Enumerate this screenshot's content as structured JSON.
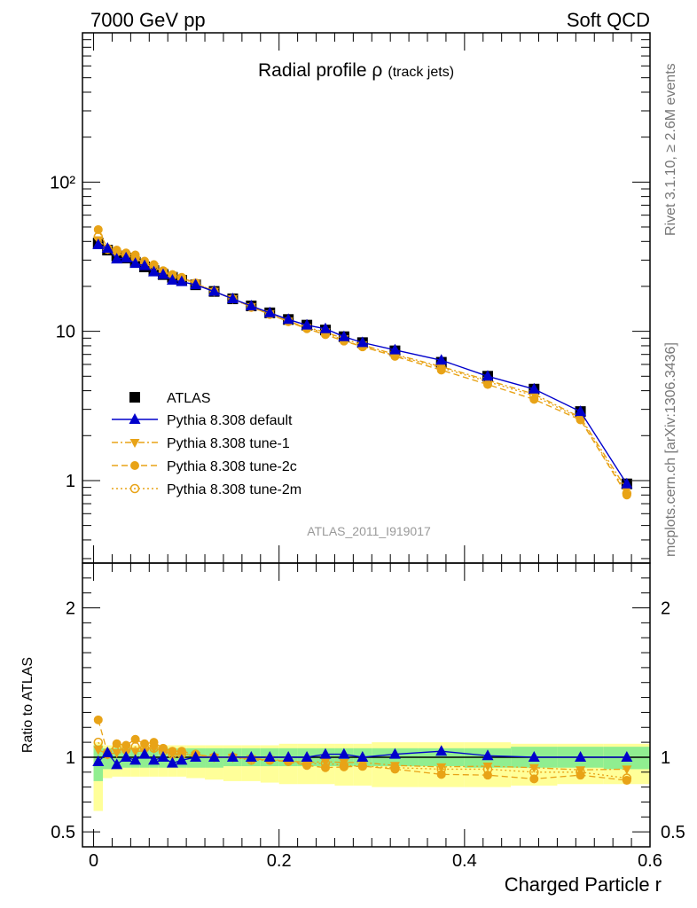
{
  "header": {
    "left": "7000 GeV pp",
    "right": "Soft QCD"
  },
  "plot_title_main": "Radial profile ρ",
  "plot_title_sub": "(track jets)",
  "side_text_top": "Rivet 3.1.10, ≥ 2.6M events",
  "side_text_bottom": "mcplots.cern.ch [arXiv:1306.3436]",
  "watermark": "ATLAS_2011_I919017",
  "xlabel": "Charged Particle r",
  "ratio_ylabel": "Ratio to ATLAS",
  "colors": {
    "atlas": "#000000",
    "default": "#0000cc",
    "tune": "#e8a317",
    "band_inner": "#90ee90",
    "band_outer": "#ffff99"
  },
  "chart_data": [
    {
      "type": "line",
      "panel": "main",
      "yscale": "log",
      "xlim": [
        -0.012,
        0.6
      ],
      "ylim": [
        0.28,
        1000
      ],
      "x_ticks": [
        "0",
        "0.2",
        "0.4",
        "0.6"
      ],
      "y_tick_labels": [
        "1",
        "10",
        "10²"
      ],
      "x": [
        0.005,
        0.015,
        0.025,
        0.035,
        0.045,
        0.055,
        0.065,
        0.075,
        0.085,
        0.095,
        0.11,
        0.13,
        0.15,
        0.17,
        0.19,
        0.21,
        0.23,
        0.25,
        0.27,
        0.29,
        0.325,
        0.375,
        0.425,
        0.475,
        0.525,
        0.575
      ],
      "series": [
        {
          "name": "ATLAS",
          "marker": "square",
          "values": [
            39,
            35,
            32,
            31,
            29,
            27,
            25.5,
            24,
            23,
            22,
            20.5,
            18.5,
            16.5,
            14.8,
            13.3,
            12,
            11,
            10.2,
            9.2,
            8.4,
            7.4,
            6.2,
            5,
            4.1,
            2.9,
            0.95
          ]
        },
        {
          "name": "Pythia 8.308 default",
          "marker": "triangle-up",
          "line": "solid",
          "values": [
            38,
            36,
            30.5,
            31,
            28.5,
            27.5,
            25,
            24,
            22,
            21.5,
            20.5,
            18.5,
            16.5,
            14.8,
            13.3,
            12,
            11,
            10.4,
            9.2,
            8.4,
            7.5,
            6.4,
            5,
            4.1,
            2.9,
            0.95
          ]
        },
        {
          "name": "Pythia 8.308 tune-1",
          "marker": "triangle-down",
          "line": "dashdot",
          "values": [
            41,
            35.5,
            33,
            32,
            30,
            28,
            27,
            25,
            23.5,
            22.5,
            21,
            18.5,
            16.5,
            14.6,
            13.1,
            11.7,
            10.6,
            9.9,
            8.9,
            8.1,
            7,
            5.8,
            4.7,
            3.8,
            2.65,
            0.87
          ]
        },
        {
          "name": "Pythia 8.308 tune-2c",
          "marker": "circle",
          "line": "dashed",
          "values": [
            48,
            36,
            35,
            33.5,
            32.5,
            29.5,
            28,
            25.5,
            24,
            23,
            21,
            18.5,
            16.5,
            14.6,
            13,
            11.6,
            10.4,
            9.5,
            8.6,
            7.9,
            6.8,
            5.5,
            4.4,
            3.5,
            2.55,
            0.8
          ]
        },
        {
          "name": "Pythia 8.308 tune-2m",
          "marker": "open-circle",
          "line": "dotted",
          "values": [
            43,
            35.5,
            34,
            32.5,
            31,
            28.5,
            27,
            25,
            23.5,
            22.5,
            21,
            18.5,
            16.5,
            14.5,
            13,
            11.7,
            10.5,
            9.8,
            8.7,
            7.9,
            6.9,
            5.7,
            4.6,
            3.7,
            2.6,
            0.82
          ]
        }
      ],
      "legend": "left-middle"
    },
    {
      "type": "line",
      "panel": "ratio",
      "ylim": [
        0.4,
        2.3
      ],
      "y_ticks": [
        "0.5",
        "1",
        "2"
      ],
      "reference": 1,
      "x": [
        0.005,
        0.015,
        0.025,
        0.035,
        0.045,
        0.055,
        0.065,
        0.075,
        0.085,
        0.095,
        0.11,
        0.13,
        0.15,
        0.17,
        0.19,
        0.21,
        0.23,
        0.25,
        0.27,
        0.29,
        0.325,
        0.375,
        0.425,
        0.475,
        0.525,
        0.575
      ],
      "bins": [
        0,
        0.01,
        0.02,
        0.03,
        0.04,
        0.05,
        0.06,
        0.07,
        0.08,
        0.09,
        0.1,
        0.12,
        0.14,
        0.16,
        0.18,
        0.2,
        0.22,
        0.24,
        0.26,
        0.28,
        0.3,
        0.35,
        0.4,
        0.45,
        0.5,
        0.55,
        0.6
      ],
      "band_inner": [
        [
          0.84,
          1.08
        ],
        [
          0.92,
          1.06
        ],
        [
          0.93,
          1.06
        ],
        [
          0.93,
          1.06
        ],
        [
          0.93,
          1.06
        ],
        [
          0.93,
          1.06
        ],
        [
          0.93,
          1.06
        ],
        [
          0.93,
          1.06
        ],
        [
          0.93,
          1.06
        ],
        [
          0.93,
          1.06
        ],
        [
          0.93,
          1.06
        ],
        [
          0.93,
          1.06
        ],
        [
          0.94,
          1.06
        ],
        [
          0.94,
          1.06
        ],
        [
          0.94,
          1.06
        ],
        [
          0.94,
          1.06
        ],
        [
          0.94,
          1.06
        ],
        [
          0.94,
          1.06
        ],
        [
          0.94,
          1.06
        ],
        [
          0.94,
          1.06
        ],
        [
          0.94,
          1.06
        ],
        [
          0.94,
          1.06
        ],
        [
          0.93,
          1.06
        ],
        [
          0.93,
          1.07
        ],
        [
          0.93,
          1.07
        ],
        [
          0.92,
          1.07
        ]
      ],
      "band_outer": [
        [
          0.64,
          1.1
        ],
        [
          0.86,
          1.08
        ],
        [
          0.87,
          1.08
        ],
        [
          0.87,
          1.08
        ],
        [
          0.87,
          1.08
        ],
        [
          0.87,
          1.08
        ],
        [
          0.87,
          1.08
        ],
        [
          0.87,
          1.08
        ],
        [
          0.87,
          1.08
        ],
        [
          0.87,
          1.08
        ],
        [
          0.86,
          1.08
        ],
        [
          0.85,
          1.08
        ],
        [
          0.84,
          1.08
        ],
        [
          0.84,
          1.08
        ],
        [
          0.83,
          1.08
        ],
        [
          0.82,
          1.09
        ],
        [
          0.82,
          1.09
        ],
        [
          0.82,
          1.09
        ],
        [
          0.81,
          1.09
        ],
        [
          0.81,
          1.09
        ],
        [
          0.8,
          1.1
        ],
        [
          0.8,
          1.1
        ],
        [
          0.8,
          1.1
        ],
        [
          0.81,
          1.09
        ],
        [
          0.82,
          1.09
        ],
        [
          0.82,
          1.09
        ]
      ],
      "series": [
        {
          "name": "Pythia 8.308 default",
          "values": [
            0.97,
            1.03,
            0.95,
            1,
            0.98,
            1.02,
            0.98,
            1,
            0.96,
            0.98,
            1,
            1,
            1,
            1,
            1,
            1,
            1,
            1.02,
            1.02,
            1,
            1.02,
            1.04,
            1.01,
            1,
            1,
            1
          ]
        },
        {
          "name": "Pythia 8.308 tune-1",
          "values": [
            1.05,
            1.02,
            1.03,
            1.03,
            1.04,
            1.04,
            1.06,
            1.04,
            1.02,
            1.02,
            1.01,
            1,
            1,
            0.99,
            0.985,
            0.975,
            0.965,
            0.97,
            0.965,
            0.965,
            0.945,
            0.935,
            0.94,
            0.93,
            0.915,
            0.92
          ]
        },
        {
          "name": "Pythia 8.308 tune-2c",
          "values": [
            1.25,
            1.03,
            1.09,
            1.08,
            1.12,
            1.09,
            1.1,
            1.06,
            1.04,
            1.04,
            1.02,
            1,
            1,
            0.99,
            0.98,
            0.97,
            0.945,
            0.93,
            0.935,
            0.94,
            0.92,
            0.885,
            0.88,
            0.855,
            0.88,
            0.845
          ]
        },
        {
          "name": "Pythia 8.308 tune-2m",
          "values": [
            1.1,
            1.02,
            1.06,
            1.05,
            1.07,
            1.06,
            1.06,
            1.04,
            1.02,
            1.02,
            1.02,
            1.0,
            1.0,
            0.98,
            0.98,
            0.975,
            0.955,
            0.96,
            0.945,
            0.94,
            0.93,
            0.92,
            0.92,
            0.9,
            0.9,
            0.86
          ]
        }
      ]
    }
  ]
}
